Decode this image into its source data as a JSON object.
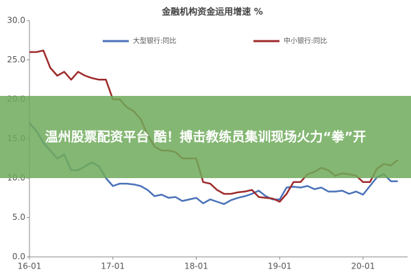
{
  "chart_data": {
    "type": "line",
    "title": "金融机构资金运用增速 %",
    "x": [
      "16-01",
      null,
      null,
      null,
      null,
      null,
      null,
      null,
      null,
      null,
      null,
      null,
      "17-01",
      null,
      null,
      null,
      null,
      null,
      null,
      null,
      null,
      null,
      null,
      null,
      "18-01",
      null,
      null,
      null,
      null,
      null,
      null,
      null,
      null,
      null,
      null,
      null,
      "19-01",
      null,
      null,
      null,
      null,
      null,
      null,
      null,
      null,
      null,
      null,
      null,
      "20-01",
      null,
      null,
      null,
      null,
      null
    ],
    "series": [
      {
        "name": "大型银行:同比",
        "color": "#4a72b8",
        "values": [
          17.0,
          16.0,
          14.5,
          13.5,
          12.5,
          13.0,
          11.0,
          11.0,
          11.5,
          12.0,
          11.5,
          10.0,
          9.0,
          9.3,
          9.3,
          9.2,
          9.0,
          8.5,
          7.7,
          7.9,
          7.5,
          7.6,
          7.1,
          7.3,
          7.5,
          6.8,
          7.3,
          7.0,
          6.7,
          7.2,
          7.5,
          7.7,
          8.0,
          8.4,
          7.7,
          7.3,
          7.3,
          8.8,
          8.9,
          8.8,
          9.0,
          8.6,
          8.8,
          8.3,
          8.3,
          8.4,
          8.0,
          8.3,
          7.9,
          9.0,
          10.1,
          10.5,
          9.6,
          9.6
        ]
      },
      {
        "name": "中小银行:同比",
        "color": "#9e2a2b",
        "values": [
          26.0,
          26.0,
          26.2,
          24.0,
          23.0,
          23.5,
          22.5,
          23.5,
          23.0,
          22.7,
          22.5,
          22.5,
          20.0,
          20.0,
          19.0,
          18.5,
          17.5,
          15.5,
          14.0,
          13.5,
          13.5,
          13.3,
          12.5,
          12.5,
          12.5,
          9.5,
          9.3,
          8.5,
          8.0,
          8.0,
          8.2,
          8.3,
          8.5,
          7.6,
          7.5,
          7.4,
          7.0,
          8.0,
          9.5,
          9.5,
          10.5,
          10.8,
          11.3,
          11.0,
          10.3,
          10.6,
          10.5,
          10.3,
          9.5,
          9.5,
          11.2,
          11.8,
          11.6,
          12.3
        ]
      }
    ],
    "ylim": [
      0,
      30
    ],
    "yticks": [
      {
        "value": 0,
        "label": "0.0"
      },
      {
        "value": 5,
        "label": "5.0"
      },
      {
        "value": 10,
        "label": "10.0"
      },
      {
        "value": 15,
        "label": "15.0"
      },
      {
        "value": 20,
        "label": "20.0"
      },
      {
        "value": 25,
        "label": "25.0"
      },
      {
        "value": 30,
        "label": "30.0"
      }
    ],
    "grid": false
  },
  "banner": {
    "text": "温州股票配资平台 酷！搏击教练员集训现场火力“拳”开"
  }
}
